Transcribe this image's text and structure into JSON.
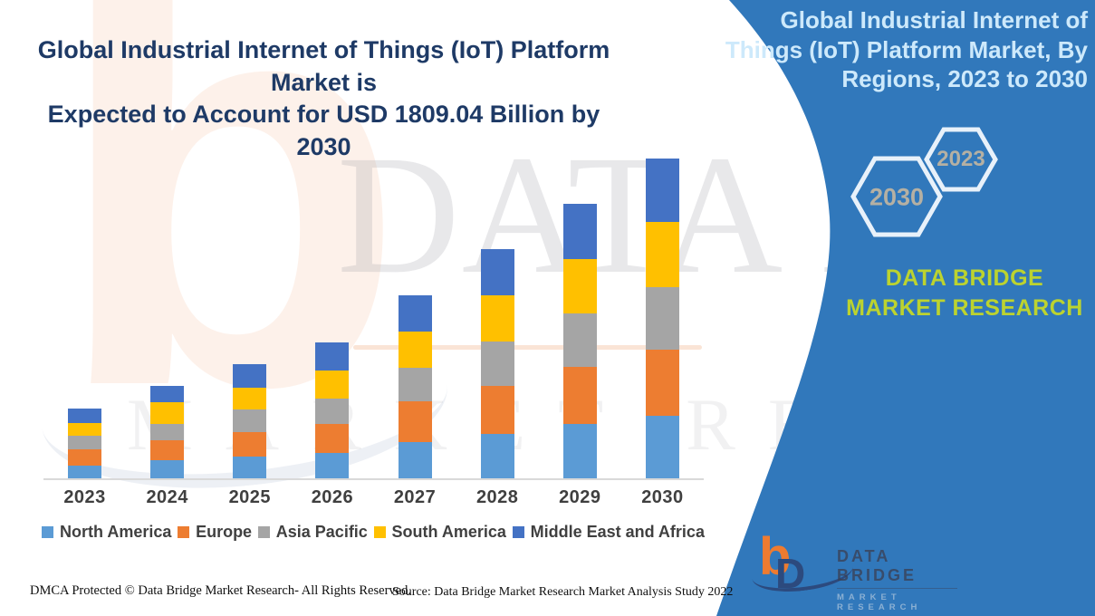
{
  "title": {
    "lines": [
      "Global Industrial Internet of Things (IoT) Platform Market is",
      "Expected to Account for USD 1809.04 Billion by 2030"
    ]
  },
  "banner": {
    "heading_lines": [
      "Global Industrial Internet of",
      "Things (IoT) Platform Market, By",
      "Regions, 2023 to 2030"
    ],
    "hexagons": [
      {
        "label": "2030"
      },
      {
        "label": "2023"
      }
    ],
    "brand": "DATA BRIDGE MARKET RESEARCH",
    "color": "#3178bb",
    "heading_text_color": "#cde9fb",
    "brand_text_color": "#bcd32f",
    "logo": {
      "mark_letters": {
        "b": "b",
        "d": "D"
      },
      "title": "DATA BRIDGE",
      "subtitle": "MARKET RESEARCH",
      "orange": "#ee7b30",
      "navy": "#2c4a7e"
    }
  },
  "watermark": {
    "letter": "b",
    "line1": "DATA BRIDGE",
    "line2": "MARKET RESEARCH"
  },
  "footer": {
    "dmca": "DMCA Protected © Data Bridge Market Research- All Rights Reserved.",
    "source": "Source: Data Bridge Market Research Market Analysis Study 2022"
  },
  "chart_data": {
    "type": "bar",
    "stacked": true,
    "title": "Global Industrial Internet of Things (IoT) Platform Market, By Regions, 2023 to 2030",
    "xlabel": "",
    "ylabel": "",
    "value_axis_shown": false,
    "grid": false,
    "legend_position": "bottom",
    "categories": [
      "2023",
      "2024",
      "2025",
      "2026",
      "2027",
      "2028",
      "2029",
      "2030"
    ],
    "series": [
      {
        "name": "North America",
        "color": "#5b9bd5",
        "values": [
          14,
          20,
          24,
          28,
          40,
          49,
          60,
          69
        ]
      },
      {
        "name": "Europe",
        "color": "#ed7d31",
        "values": [
          18,
          22,
          27,
          32,
          45,
          53,
          63,
          73
        ]
      },
      {
        "name": "Asia Pacific",
        "color": "#a5a5a5",
        "values": [
          15,
          18,
          25,
          28,
          37,
          49,
          59,
          69
        ]
      },
      {
        "name": "South America",
        "color": "#ffc000",
        "values": [
          14,
          24,
          24,
          31,
          40,
          51,
          60,
          72
        ]
      },
      {
        "name": "Middle East and Africa",
        "color": "#4472c4",
        "values": [
          16,
          18,
          26,
          31,
          40,
          51,
          61,
          70
        ]
      }
    ],
    "values_unit": "relative stacked-segment heights in px (chart displays no value axis)",
    "estimated_totals_usd_billion": [
      395,
      523,
      646,
      769,
      1035,
      1296,
      1553,
      1809.04
    ],
    "annotation": "Expected to account for USD 1809.04 Billion by 2030"
  }
}
